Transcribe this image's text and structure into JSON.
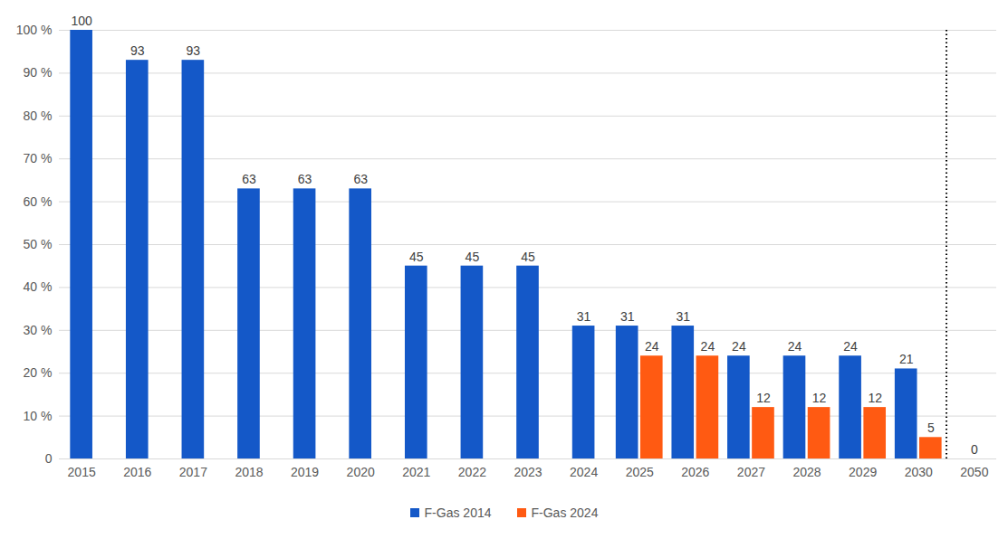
{
  "chart_data": {
    "type": "bar",
    "categories": [
      "2015",
      "2016",
      "2017",
      "2018",
      "2019",
      "2020",
      "2021",
      "2022",
      "2023",
      "2024",
      "2025",
      "2026",
      "2027",
      "2028",
      "2029",
      "2030",
      "2050"
    ],
    "series": [
      {
        "name": "F-Gas 2014",
        "color": "#1458c8",
        "values": [
          100,
          93,
          93,
          63,
          63,
          63,
          45,
          45,
          45,
          31,
          31,
          31,
          24,
          24,
          24,
          21,
          0
        ]
      },
      {
        "name": "F-Gas 2024",
        "color": "#ff5a12",
        "values": [
          null,
          null,
          null,
          null,
          null,
          null,
          null,
          null,
          null,
          null,
          24,
          24,
          12,
          12,
          12,
          5,
          null
        ]
      }
    ],
    "ylim": [
      0,
      100
    ],
    "yticks": [
      0,
      {
        "value": 10,
        "label": "10 %"
      },
      {
        "value": 20,
        "label": "20 %"
      },
      {
        "value": 30,
        "label": "30 %"
      },
      {
        "value": 40,
        "label": "40 %"
      },
      {
        "value": 50,
        "label": "50 %"
      },
      {
        "value": 60,
        "label": "60 %"
      },
      {
        "value": 70,
        "label": "70 %"
      },
      {
        "value": 80,
        "label": "80 %"
      },
      {
        "value": 90,
        "label": "90 %"
      },
      {
        "value": 100,
        "label": "100 %"
      }
    ],
    "grid": true,
    "data_labels": true,
    "legend": "bottom"
  }
}
